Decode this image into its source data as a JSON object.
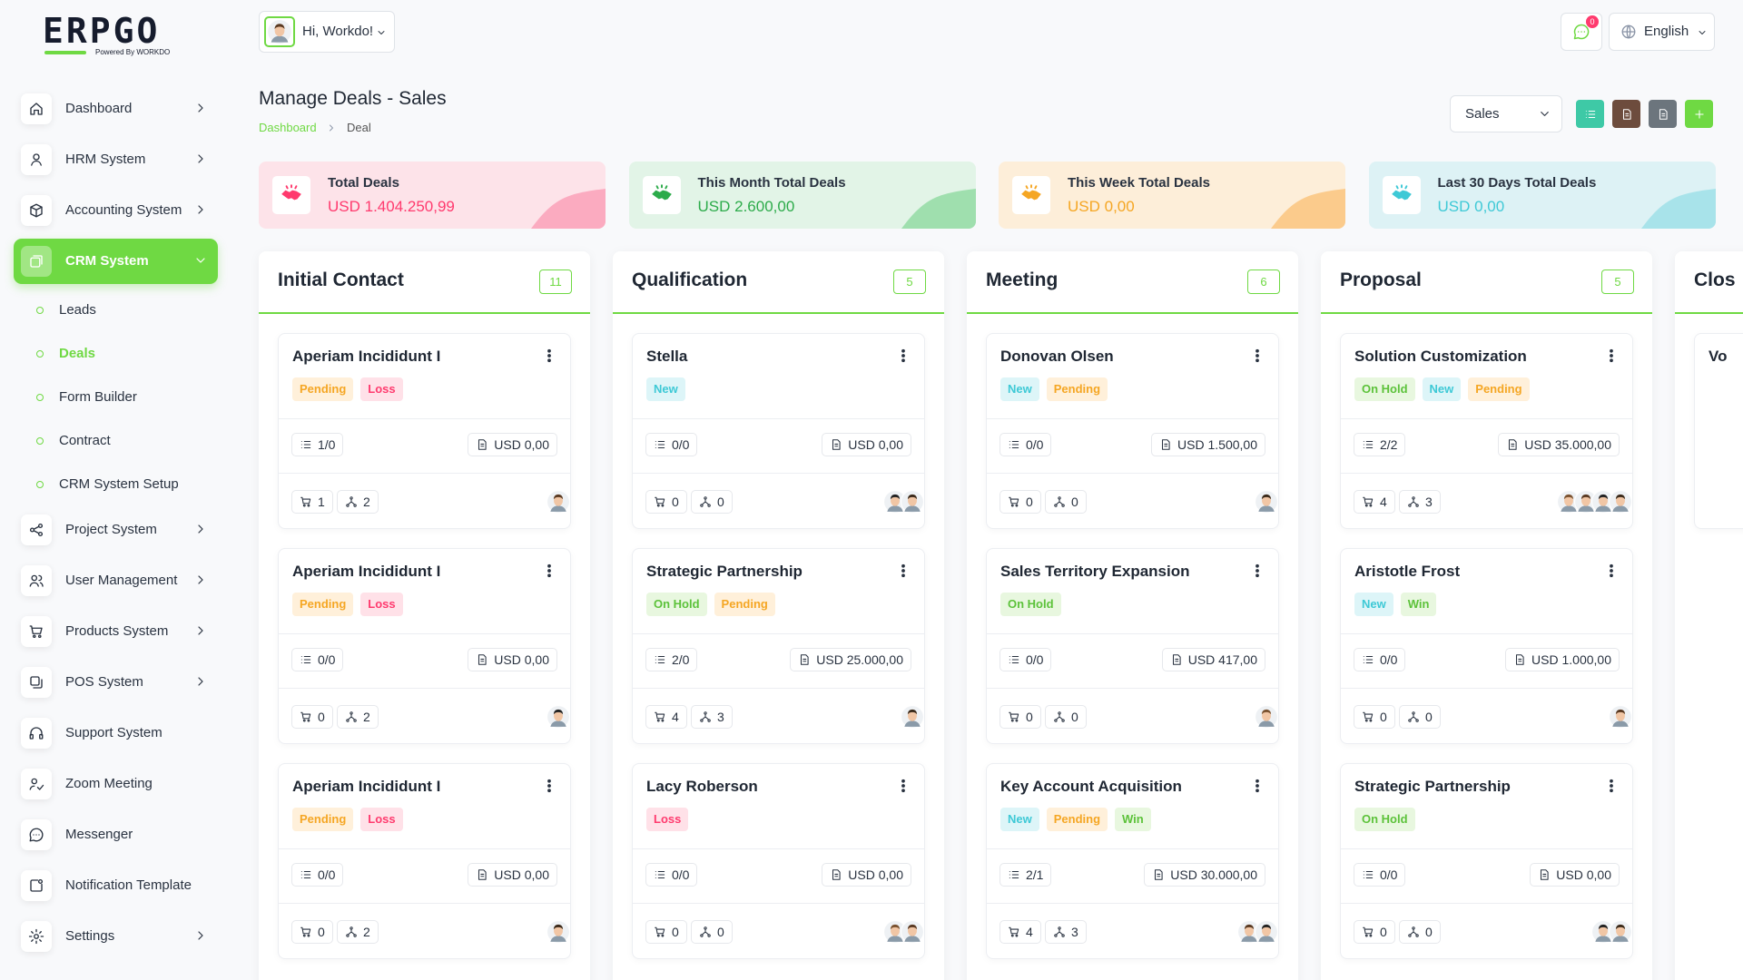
{
  "logo": {
    "brand": "ERPGO",
    "tagline": "Powered By WORKDO"
  },
  "header": {
    "greeting": "Hi, Workdo!",
    "notifications": 0,
    "language": "English"
  },
  "sidebar": {
    "menu": [
      {
        "label": "Dashboard",
        "chevron": true
      },
      {
        "label": "HRM System",
        "chevron": true
      },
      {
        "label": "Accounting System",
        "chevron": true
      },
      {
        "label": "CRM System",
        "chevron": true,
        "active": true,
        "children": [
          {
            "label": "Leads"
          },
          {
            "label": "Deals",
            "active": true
          },
          {
            "label": "Form Builder"
          },
          {
            "label": "Contract"
          },
          {
            "label": "CRM System Setup"
          }
        ]
      },
      {
        "label": "Project System",
        "chevron": true
      },
      {
        "label": "User Management",
        "chevron": true
      },
      {
        "label": "Products System",
        "chevron": true
      },
      {
        "label": "POS System",
        "chevron": true
      },
      {
        "label": "Support System",
        "chevron": false
      },
      {
        "label": "Zoom Meeting",
        "chevron": false
      },
      {
        "label": "Messenger",
        "chevron": false
      },
      {
        "label": "Notification Template",
        "chevron": false
      },
      {
        "label": "Settings",
        "chevron": true
      }
    ]
  },
  "page": {
    "title": "Manage Deals - Sales",
    "breadcrumb": [
      "Dashboard",
      "Deal"
    ],
    "pipeline": "Sales"
  },
  "stats": [
    {
      "label": "Total Deals",
      "value": "USD 1.404.250,99",
      "color": "#ff3a6e",
      "bg": "#fde3e9",
      "wave": "#fbabc0"
    },
    {
      "label": "This Month Total Deals",
      "value": "USD 2.600,00",
      "color": "#2cab4a",
      "bg": "#e2f4e7",
      "wave": "#9fdfae"
    },
    {
      "label": "This Week Total Deals",
      "value": "USD 0,00",
      "color": "#f5a623",
      "bg": "#fdeed9",
      "wave": "#fbcb8c"
    },
    {
      "label": "Last 30 Days Total Deals",
      "value": "USD 0,00",
      "color": "#3ec9d6",
      "bg": "#ddf2f5",
      "wave": "#a8e3ea"
    }
  ],
  "columns": [
    {
      "name": "Initial Contact",
      "count": 11,
      "cards": [
        {
          "title": "Aperiam Incididunt I",
          "tags": [
            "Pending",
            "Loss"
          ],
          "tasks": "1/0",
          "amount": "USD 0,00",
          "products": 1,
          "sources": 2
        },
        {
          "title": "Aperiam Incididunt I",
          "tags": [
            "Pending",
            "Loss"
          ],
          "tasks": "0/0",
          "amount": "USD 0,00",
          "products": 0,
          "sources": 2
        },
        {
          "title": "Aperiam Incididunt I",
          "tags": [
            "Pending",
            "Loss"
          ],
          "tasks": "0/0",
          "amount": "USD 0,00",
          "products": 0,
          "sources": 2
        }
      ]
    },
    {
      "name": "Qualification",
      "count": 5,
      "cards": [
        {
          "title": "Stella",
          "tags": [
            "New"
          ],
          "tasks": "0/0",
          "amount": "USD 0,00",
          "products": 0,
          "sources": 0
        },
        {
          "title": "Strategic Partnership",
          "tags": [
            "On Hold",
            "Pending"
          ],
          "tasks": "2/0",
          "amount": "USD 25.000,00",
          "products": 4,
          "sources": 3
        },
        {
          "title": "Lacy Roberson",
          "tags": [
            "Loss"
          ],
          "tasks": "0/0",
          "amount": "USD 0,00",
          "products": 0,
          "sources": 0
        }
      ]
    },
    {
      "name": "Meeting",
      "count": 6,
      "cards": [
        {
          "title": "Donovan Olsen",
          "tags": [
            "New",
            "Pending"
          ],
          "tasks": "0/0",
          "amount": "USD 1.500,00",
          "products": 0,
          "sources": 0
        },
        {
          "title": "Sales Territory Expansion",
          "tags": [
            "On Hold"
          ],
          "tasks": "0/0",
          "amount": "USD 417,00",
          "products": 0,
          "sources": 0
        },
        {
          "title": "Key Account Acquisition",
          "tags": [
            "New",
            "Pending",
            "Win"
          ],
          "tasks": "2/1",
          "amount": "USD 30.000,00",
          "products": 4,
          "sources": 3
        }
      ]
    },
    {
      "name": "Proposal",
      "count": 5,
      "cards": [
        {
          "title": "Solution Customization",
          "tags": [
            "On Hold",
            "New",
            "Pending"
          ],
          "tasks": "2/2",
          "amount": "USD 35.000,00",
          "products": 4,
          "sources": 3
        },
        {
          "title": "Aristotle Frost",
          "tags": [
            "New",
            "Win"
          ],
          "tasks": "0/0",
          "amount": "USD 1.000,00",
          "products": 0,
          "sources": 0
        },
        {
          "title": "Strategic Partnership",
          "tags": [
            "On Hold"
          ],
          "tasks": "0/0",
          "amount": "USD 0,00",
          "products": 0,
          "sources": 0
        }
      ]
    },
    {
      "name": "Clos",
      "cards": [
        {
          "title": "Vo"
        }
      ]
    }
  ],
  "tag_styles": {
    "Pending": {
      "color": "#f5a623",
      "bg": "#fff0da"
    },
    "Loss": {
      "color": "#ff3a6e",
      "bg": "#ffe1e8"
    },
    "New": {
      "color": "#3ec9d6",
      "bg": "#ddf5f8"
    },
    "On Hold": {
      "color": "#5cc23a",
      "bg": "#e8f7df"
    },
    "Win": {
      "color": "#5cc23a",
      "bg": "#e8f7df"
    }
  },
  "accent": "#6fd943"
}
